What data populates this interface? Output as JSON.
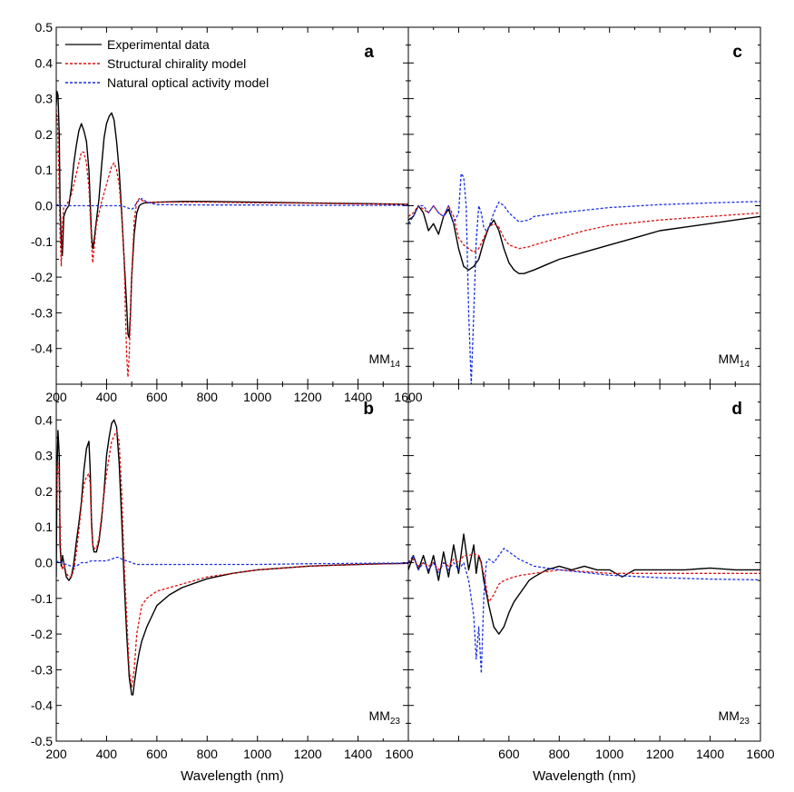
{
  "colors": {
    "experimental": "#000000",
    "structural": "#dd1111",
    "natural": "#1a2fe0"
  },
  "legend": [
    {
      "label": "Experimental data",
      "color": "#000000",
      "dashed": false
    },
    {
      "label": "Structural chirality model",
      "color": "#dd1111",
      "dashed": true
    },
    {
      "label": "Natural optical activity model",
      "color": "#1a2fe0",
      "dashed": true
    }
  ],
  "chart_data": [
    {
      "type": "line",
      "panel": "a",
      "tag_main": "MM",
      "tag_sub": "14",
      "xlim": [
        200,
        1600
      ],
      "ylim": [
        -0.5,
        0.5
      ],
      "xticks": [
        "200",
        "400",
        "600",
        "800",
        "1000",
        "1200",
        "1400",
        "1600"
      ],
      "yticks": [
        "0.5",
        "0.4",
        "0.3",
        "0.2",
        "0.1",
        "0.0",
        "-0.1",
        "-0.2",
        "-0.3",
        "-0.4"
      ],
      "xlabel": "",
      "series": [
        {
          "name": "Experimental data",
          "x": [
            200,
            203,
            207,
            212,
            215,
            220,
            224,
            230,
            240,
            250,
            260,
            270,
            280,
            290,
            300,
            310,
            320,
            330,
            340,
            345,
            350,
            360,
            370,
            380,
            390,
            400,
            410,
            420,
            430,
            440,
            450,
            460,
            470,
            480,
            485,
            490,
            495,
            500,
            510,
            520,
            530,
            540,
            550,
            600,
            700,
            800,
            1000,
            1200,
            1400,
            1600
          ],
          "y": [
            0.28,
            0.32,
            0.31,
            0.2,
            0.0,
            -0.1,
            -0.14,
            -0.03,
            -0.01,
            0.0,
            0.05,
            0.12,
            0.17,
            0.21,
            0.23,
            0.21,
            0.18,
            0.1,
            -0.08,
            -0.12,
            -0.1,
            -0.04,
            0.02,
            0.11,
            0.19,
            0.23,
            0.25,
            0.26,
            0.24,
            0.18,
            0.1,
            -0.02,
            -0.15,
            -0.28,
            -0.36,
            -0.37,
            -0.3,
            -0.2,
            -0.08,
            -0.02,
            0.0,
            0.005,
            0.008,
            0.01,
            0.012,
            0.012,
            0.01,
            0.008,
            0.006,
            0.004
          ]
        },
        {
          "name": "Structural chirality model",
          "x": [
            200,
            205,
            210,
            215,
            220,
            225,
            230,
            240,
            260,
            280,
            300,
            310,
            320,
            330,
            340,
            345,
            350,
            360,
            380,
            400,
            420,
            430,
            440,
            450,
            460,
            470,
            475,
            480,
            485,
            490,
            500,
            510,
            520,
            530,
            540,
            560,
            600,
            800,
            1000,
            1200,
            1400,
            1600
          ],
          "y": [
            0.27,
            0.23,
            0.1,
            -0.08,
            -0.17,
            -0.05,
            0.0,
            0.0,
            0.03,
            0.09,
            0.15,
            0.15,
            0.12,
            0.05,
            -0.1,
            -0.16,
            -0.12,
            -0.05,
            0.01,
            0.06,
            0.11,
            0.12,
            0.1,
            0.06,
            -0.03,
            -0.15,
            -0.3,
            -0.42,
            -0.48,
            -0.42,
            -0.2,
            -0.04,
            0.01,
            0.02,
            0.015,
            0.01,
            0.01,
            0.01,
            0.008,
            0.007,
            0.005,
            0.004
          ]
        },
        {
          "name": "Natural optical activity model",
          "x": [
            200,
            210,
            220,
            230,
            300,
            400,
            460,
            480,
            500,
            510,
            520,
            540,
            560,
            600,
            800,
            1000,
            1200,
            1400,
            1600
          ],
          "y": [
            0.0,
            0.005,
            0.0,
            0.0,
            0.0,
            0.0,
            0.0,
            -0.005,
            -0.01,
            -0.005,
            0.01,
            0.02,
            0.01,
            0.003,
            0.002,
            0.002,
            0.001,
            0.001,
            0.001
          ]
        }
      ]
    },
    {
      "type": "line",
      "panel": "c",
      "tag_main": "MM",
      "tag_sub": "14",
      "xlim": [
        200,
        1600
      ],
      "ylim": [
        -0.5,
        0.5
      ],
      "xticks": [],
      "yticks": [],
      "xlabel": "",
      "series": [
        {
          "name": "Experimental data",
          "x": [
            200,
            220,
            240,
            260,
            280,
            300,
            320,
            340,
            360,
            380,
            400,
            420,
            440,
            460,
            480,
            500,
            520,
            540,
            560,
            580,
            600,
            620,
            640,
            660,
            680,
            700,
            750,
            800,
            900,
            1000,
            1100,
            1200,
            1300,
            1400,
            1500,
            1600
          ],
          "y": [
            -0.04,
            -0.03,
            0.0,
            -0.02,
            -0.07,
            -0.05,
            -0.08,
            -0.03,
            -0.01,
            -0.05,
            -0.12,
            -0.17,
            -0.18,
            -0.17,
            -0.15,
            -0.1,
            -0.06,
            -0.04,
            -0.07,
            -0.12,
            -0.16,
            -0.18,
            -0.19,
            -0.19,
            -0.185,
            -0.18,
            -0.165,
            -0.15,
            -0.13,
            -0.11,
            -0.09,
            -0.07,
            -0.06,
            -0.05,
            -0.04,
            -0.03
          ]
        },
        {
          "name": "Structural chirality model",
          "x": [
            200,
            220,
            240,
            260,
            280,
            300,
            320,
            340,
            360,
            380,
            400,
            420,
            440,
            460,
            480,
            500,
            520,
            540,
            560,
            580,
            600,
            640,
            680,
            700,
            750,
            800,
            900,
            1000,
            1200,
            1400,
            1600
          ],
          "y": [
            -0.03,
            -0.02,
            0.0,
            -0.01,
            -0.02,
            0.0,
            -0.02,
            -0.03,
            0.0,
            -0.03,
            -0.09,
            -0.11,
            -0.12,
            -0.13,
            -0.12,
            -0.09,
            -0.06,
            -0.05,
            -0.06,
            -0.09,
            -0.11,
            -0.12,
            -0.115,
            -0.11,
            -0.1,
            -0.09,
            -0.07,
            -0.055,
            -0.04,
            -0.03,
            -0.02
          ]
        },
        {
          "name": "Natural optical activity model",
          "x": [
            200,
            220,
            240,
            260,
            280,
            300,
            320,
            340,
            360,
            380,
            400,
            410,
            420,
            430,
            440,
            450,
            460,
            470,
            480,
            490,
            500,
            510,
            520,
            540,
            560,
            580,
            600,
            640,
            680,
            700,
            800,
            1000,
            1200,
            1400,
            1600
          ],
          "y": [
            -0.05,
            -0.03,
            0.0,
            0.0,
            -0.02,
            0.0,
            -0.02,
            -0.03,
            0.0,
            -0.05,
            -0.02,
            0.09,
            0.08,
            0.0,
            -0.3,
            -0.5,
            -0.3,
            -0.1,
            0.0,
            -0.02,
            -0.06,
            -0.07,
            -0.06,
            -0.02,
            0.01,
            0.0,
            -0.02,
            -0.045,
            -0.04,
            -0.03,
            -0.02,
            -0.005,
            0.003,
            0.008,
            0.012
          ]
        }
      ]
    },
    {
      "type": "line",
      "panel": "b",
      "tag_main": "MM",
      "tag_sub": "23",
      "xlim": [
        200,
        1600
      ],
      "ylim": [
        -0.5,
        0.5
      ],
      "xticks": [
        "200",
        "400",
        "600",
        "800",
        "1000",
        "1200",
        "1400",
        "1600"
      ],
      "yticks": [
        "0.4",
        "0.3",
        "0.2",
        "0.1",
        "0.0",
        "-0.1",
        "-0.2",
        "-0.3",
        "-0.4",
        "-0.5"
      ],
      "xlabel": "Wavelength (nm)",
      "series": [
        {
          "name": "Experimental data",
          "x": [
            200,
            203,
            207,
            212,
            215,
            220,
            225,
            230,
            240,
            250,
            260,
            270,
            280,
            290,
            300,
            310,
            320,
            330,
            335,
            340,
            345,
            350,
            360,
            370,
            380,
            390,
            400,
            410,
            420,
            430,
            440,
            450,
            460,
            470,
            480,
            490,
            500,
            505,
            510,
            520,
            530,
            540,
            560,
            580,
            600,
            650,
            700,
            800,
            900,
            1000,
            1100,
            1200,
            1300,
            1400,
            1500,
            1600
          ],
          "y": [
            -0.04,
            0.25,
            0.37,
            0.3,
            0.05,
            -0.01,
            0.02,
            0.0,
            -0.04,
            -0.05,
            -0.04,
            0.0,
            0.06,
            0.11,
            0.17,
            0.26,
            0.32,
            0.34,
            0.26,
            0.12,
            0.05,
            0.03,
            0.03,
            0.06,
            0.12,
            0.2,
            0.3,
            0.35,
            0.39,
            0.4,
            0.38,
            0.28,
            0.12,
            -0.05,
            -0.2,
            -0.32,
            -0.37,
            -0.37,
            -0.34,
            -0.29,
            -0.25,
            -0.22,
            -0.18,
            -0.15,
            -0.12,
            -0.09,
            -0.07,
            -0.045,
            -0.03,
            -0.02,
            -0.015,
            -0.01,
            -0.007,
            -0.005,
            -0.003,
            -0.002
          ]
        },
        {
          "name": "Structural chirality model",
          "x": [
            200,
            205,
            210,
            215,
            220,
            225,
            230,
            240,
            250,
            260,
            270,
            280,
            290,
            300,
            310,
            320,
            330,
            335,
            340,
            345,
            350,
            360,
            370,
            380,
            400,
            420,
            440,
            450,
            460,
            470,
            480,
            490,
            500,
            510,
            520,
            540,
            560,
            600,
            700,
            800,
            1000,
            1200,
            1400,
            1600
          ],
          "y": [
            0.15,
            0.28,
            0.27,
            0.1,
            0.0,
            -0.02,
            0.0,
            -0.03,
            -0.04,
            -0.04,
            -0.02,
            0.03,
            0.09,
            0.16,
            0.22,
            0.24,
            0.25,
            0.22,
            0.1,
            0.05,
            0.04,
            0.04,
            0.07,
            0.13,
            0.25,
            0.34,
            0.37,
            0.34,
            0.2,
            0.0,
            -0.15,
            -0.3,
            -0.35,
            -0.3,
            -0.2,
            -0.12,
            -0.1,
            -0.08,
            -0.06,
            -0.04,
            -0.02,
            -0.01,
            -0.005,
            -0.002
          ]
        },
        {
          "name": "Natural optical activity model",
          "x": [
            200,
            210,
            220,
            240,
            260,
            280,
            300,
            320,
            340,
            360,
            380,
            400,
            420,
            440,
            450,
            460,
            480,
            500,
            520,
            540,
            600,
            800,
            1000,
            1200,
            1400,
            1600
          ],
          "y": [
            0.0,
            0.005,
            0.0,
            -0.005,
            -0.01,
            -0.01,
            0.0,
            0.0,
            0.005,
            0.005,
            0.005,
            0.005,
            0.01,
            0.015,
            0.015,
            0.01,
            0.005,
            0.0,
            -0.005,
            -0.005,
            -0.005,
            -0.005,
            -0.005,
            -0.003,
            -0.002,
            -0.001
          ]
        }
      ]
    },
    {
      "type": "line",
      "panel": "d",
      "tag_main": "MM",
      "tag_sub": "23",
      "xlim": [
        200,
        1600
      ],
      "ylim": [
        -0.5,
        0.5
      ],
      "xticks": [
        "600",
        "800",
        "1000",
        "1200",
        "1400",
        "1600"
      ],
      "yticks": [],
      "xlabel": "Wavelength (nm)",
      "series": [
        {
          "name": "Experimental data",
          "x": [
            200,
            220,
            240,
            260,
            280,
            300,
            320,
            340,
            360,
            380,
            400,
            420,
            440,
            460,
            470,
            480,
            490,
            500,
            520,
            540,
            560,
            580,
            600,
            620,
            640,
            660,
            680,
            700,
            750,
            800,
            850,
            900,
            950,
            1000,
            1050,
            1100,
            1200,
            1300,
            1400,
            1500,
            1600
          ],
          "y": [
            -0.02,
            0.02,
            -0.02,
            0.02,
            -0.03,
            0.02,
            -0.05,
            0.03,
            -0.04,
            0.05,
            -0.03,
            0.08,
            -0.02,
            0.05,
            -0.03,
            0.02,
            0.0,
            -0.05,
            -0.12,
            -0.18,
            -0.2,
            -0.18,
            -0.14,
            -0.11,
            -0.09,
            -0.07,
            -0.05,
            -0.04,
            -0.02,
            -0.01,
            -0.02,
            -0.01,
            -0.02,
            -0.02,
            -0.04,
            -0.02,
            -0.02,
            -0.02,
            -0.015,
            -0.02,
            -0.02
          ]
        },
        {
          "name": "Structural chirality model",
          "x": [
            200,
            220,
            240,
            260,
            280,
            300,
            320,
            340,
            360,
            380,
            400,
            420,
            440,
            460,
            480,
            500,
            520,
            540,
            560,
            580,
            600,
            620,
            650,
            700,
            800,
            900,
            1000,
            1200,
            1400,
            1600
          ],
          "y": [
            0.0,
            0.01,
            -0.01,
            0.0,
            -0.01,
            0.0,
            -0.02,
            0.0,
            -0.01,
            0.01,
            0.0,
            0.02,
            0.02,
            0.025,
            0.02,
            -0.03,
            -0.11,
            -0.09,
            -0.06,
            -0.05,
            -0.045,
            -0.04,
            -0.035,
            -0.03,
            -0.02,
            -0.025,
            -0.03,
            -0.03,
            -0.03,
            -0.03
          ]
        },
        {
          "name": "Natural optical activity model",
          "x": [
            200,
            220,
            240,
            260,
            280,
            300,
            320,
            340,
            360,
            380,
            400,
            420,
            440,
            460,
            470,
            480,
            490,
            500,
            510,
            520,
            540,
            560,
            580,
            600,
            620,
            640,
            700,
            800,
            1000,
            1200,
            1400,
            1600
          ],
          "y": [
            0.0,
            0.02,
            -0.02,
            0.0,
            -0.02,
            0.0,
            -0.03,
            0.0,
            -0.02,
            0.0,
            -0.02,
            0.0,
            -0.05,
            -0.15,
            -0.27,
            -0.18,
            -0.31,
            -0.1,
            0.0,
            0.01,
            0.0,
            0.02,
            0.04,
            0.03,
            0.02,
            0.01,
            -0.01,
            -0.02,
            -0.035,
            -0.042,
            -0.046,
            -0.048
          ]
        }
      ]
    }
  ]
}
